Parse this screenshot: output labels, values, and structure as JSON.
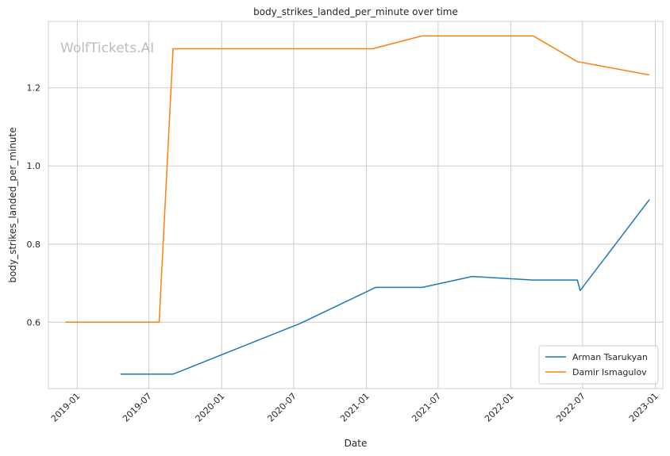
{
  "chart_data": {
    "type": "line",
    "title": "body_strikes_landed_per_minute over time",
    "xlabel": "Date",
    "ylabel": "body_strikes_landed_per_minute",
    "watermark": "WolfTickets.AI",
    "grid": true,
    "legend_position": "bottom-right",
    "xlim": [
      "2018-10-20",
      "2023-01-20"
    ],
    "ylim": [
      0.43,
      1.37
    ],
    "x_ticks": [
      "2019-01",
      "2019-07",
      "2020-01",
      "2020-07",
      "2021-01",
      "2021-07",
      "2022-01",
      "2022-07",
      "2023-01"
    ],
    "y_ticks": [
      0.6,
      0.8,
      1.0,
      1.2
    ],
    "y_tick_labels": [
      "0.6",
      "0.8",
      "1.0",
      "1.2"
    ],
    "series": [
      {
        "name": "Arman Tsarukyan",
        "color": "#1f77b4",
        "points": [
          {
            "x": "2019-04-20",
            "y": 0.467
          },
          {
            "x": "2019-08-31",
            "y": 0.467
          },
          {
            "x": "2020-07-18",
            "y": 0.597
          },
          {
            "x": "2021-01-24",
            "y": 0.689
          },
          {
            "x": "2021-05-22",
            "y": 0.689
          },
          {
            "x": "2021-09-25",
            "y": 0.717
          },
          {
            "x": "2022-02-26",
            "y": 0.708
          },
          {
            "x": "2022-06-18",
            "y": 0.708
          },
          {
            "x": "2022-06-25",
            "y": 0.681
          },
          {
            "x": "2022-12-17",
            "y": 0.914
          }
        ]
      },
      {
        "name": "Damir Ismagulov",
        "color": "#ff7f0e",
        "points": [
          {
            "x": "2018-12-02",
            "y": 0.6
          },
          {
            "x": "2019-07-27",
            "y": 0.6
          },
          {
            "x": "2019-08-31",
            "y": 1.3
          },
          {
            "x": "2021-01-16",
            "y": 1.3
          },
          {
            "x": "2021-05-22",
            "y": 1.333
          },
          {
            "x": "2022-02-26",
            "y": 1.333
          },
          {
            "x": "2022-06-18",
            "y": 1.267
          },
          {
            "x": "2022-12-17",
            "y": 1.233
          }
        ]
      }
    ]
  }
}
